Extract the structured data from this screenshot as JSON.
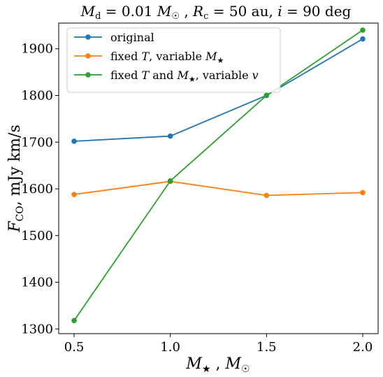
{
  "chart_data": {
    "type": "line",
    "title": "M_d = 0.01 M_☉ , R_c = 50 au, i = 90 deg",
    "xlabel": "M_★ , M_☉",
    "ylabel": "F_CO, mJy km/s",
    "x": [
      0.5,
      1.0,
      1.5,
      2.0
    ],
    "xlim": [
      0.42,
      2.08
    ],
    "ylim": [
      1290,
      1955
    ],
    "xticks": [
      0.5,
      1.0,
      1.5,
      2.0
    ],
    "xtick_labels": [
      "0.5",
      "1.0",
      "1.5",
      "2.0"
    ],
    "yticks": [
      1300,
      1400,
      1500,
      1600,
      1700,
      1800,
      1900
    ],
    "ytick_labels": [
      "1300",
      "1400",
      "1500",
      "1600",
      "1700",
      "1800",
      "1900"
    ],
    "grid": false,
    "legend_position": "top-left",
    "series": [
      {
        "name": "original",
        "color": "#1f77b4",
        "values": [
          1702,
          1713,
          1800,
          1921
        ]
      },
      {
        "name": "fixed T, variable M_★",
        "color": "#ff7f0e",
        "values": [
          1588,
          1616,
          1586,
          1592
        ]
      },
      {
        "name": "fixed T and M_★, variable v",
        "color": "#2ca02c",
        "values": [
          1318,
          1617,
          1800,
          1940
        ]
      }
    ]
  }
}
